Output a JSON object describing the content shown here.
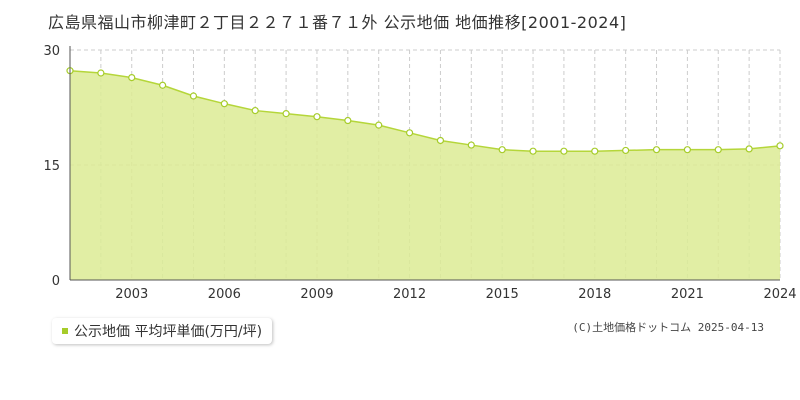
{
  "title": "広島県福山市柳津町２丁目２２７１番７１外 公示地価 地価推移[2001-2024]",
  "legend": {
    "label": "公示地価 平均坪単価(万円/坪)"
  },
  "footer": "(C)土地価格ドットコム 2025-04-13",
  "colors": {
    "fill": "#dceb94",
    "line": "#b5d63a",
    "marker": "#a6cc2a",
    "grid": "#cccccc"
  },
  "chart_data": {
    "type": "area",
    "title": "広島県福山市柳津町２丁目２２７１番７１外 公示地価 地価推移[2001-2024]",
    "xlabel": "",
    "ylabel": "",
    "x": [
      2001,
      2002,
      2003,
      2004,
      2005,
      2006,
      2007,
      2008,
      2009,
      2010,
      2011,
      2012,
      2013,
      2014,
      2015,
      2016,
      2017,
      2018,
      2019,
      2020,
      2021,
      2022,
      2023,
      2024
    ],
    "xticks": [
      2003,
      2006,
      2009,
      2012,
      2015,
      2018,
      2021,
      2024
    ],
    "yticks": [
      0,
      15,
      30
    ],
    "ylim": [
      0,
      30
    ],
    "xlim": [
      2001,
      2024
    ],
    "grid": true,
    "legend_position": "bottom-left",
    "series": [
      {
        "name": "公示地価 平均坪単価(万円/坪)",
        "values": [
          27.3,
          27.0,
          26.4,
          25.4,
          24.0,
          23.0,
          22.1,
          21.7,
          21.3,
          20.8,
          20.2,
          19.2,
          18.2,
          17.6,
          17.0,
          16.8,
          16.8,
          16.8,
          16.9,
          17.0,
          17.0,
          17.0,
          17.1,
          17.5
        ]
      }
    ]
  }
}
